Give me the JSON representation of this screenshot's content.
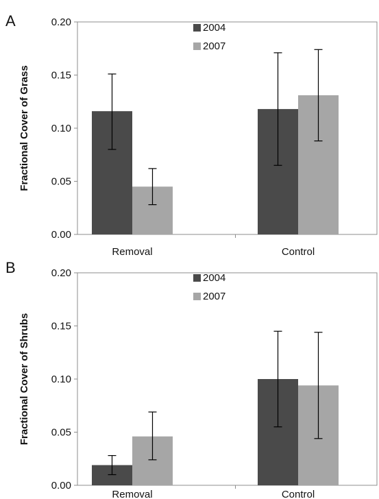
{
  "chart_data": [
    {
      "type": "bar",
      "panel_label": "A",
      "categories": [
        "Removal",
        "Control"
      ],
      "series": [
        {
          "name": "2004",
          "values": [
            0.116,
            0.118
          ],
          "err_low": [
            0.08,
            0.065
          ],
          "err_high": [
            0.151,
            0.171
          ]
        },
        {
          "name": "2007",
          "values": [
            0.045,
            0.131
          ],
          "err_low": [
            0.028,
            0.088
          ],
          "err_high": [
            0.062,
            0.174
          ]
        }
      ],
      "ylabel": "Fractional Cover of Grass",
      "ylim": [
        0,
        0.2
      ],
      "yticks": [
        "0.00",
        "0.05",
        "0.10",
        "0.15",
        "0.20"
      ],
      "legend_position": "top-center",
      "grid": false
    },
    {
      "type": "bar",
      "panel_label": "B",
      "categories": [
        "Removal",
        "Control"
      ],
      "series": [
        {
          "name": "2004",
          "values": [
            0.019,
            0.1
          ],
          "err_low": [
            0.01,
            0.055
          ],
          "err_high": [
            0.028,
            0.145
          ]
        },
        {
          "name": "2007",
          "values": [
            0.046,
            0.094
          ],
          "err_low": [
            0.024,
            0.044
          ],
          "err_high": [
            0.069,
            0.144
          ]
        }
      ],
      "ylabel": "Fractional Cover of  Shrubs",
      "ylim": [
        0,
        0.2
      ],
      "yticks": [
        "0.00",
        "0.05",
        "0.10",
        "0.15",
        "0.20"
      ],
      "legend_position": "top-center",
      "grid": false
    }
  ],
  "colors": {
    "2004": "#4a4a4a",
    "2007": "#a6a6a6",
    "axis": "#8c8c8c"
  }
}
